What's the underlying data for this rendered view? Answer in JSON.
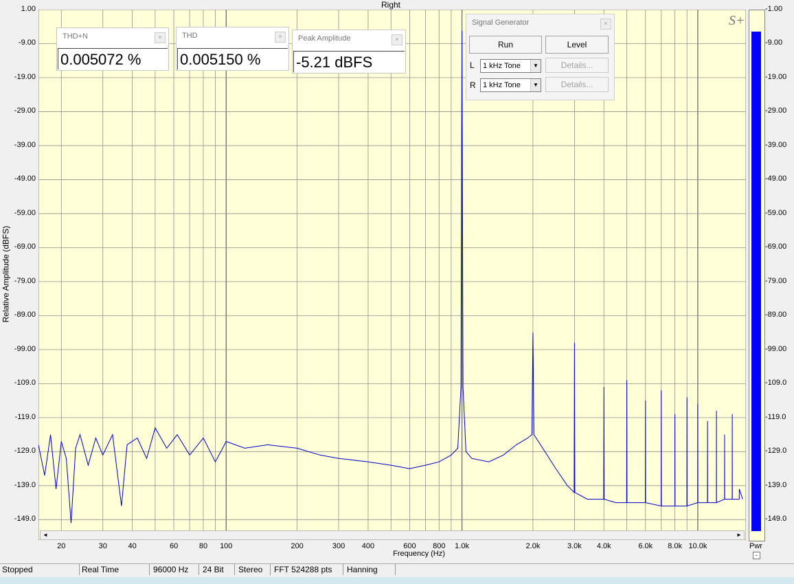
{
  "window": {
    "title": "Right",
    "brand": "S+"
  },
  "chart_data": {
    "type": "line",
    "xlabel": "Frequency (Hz)",
    "ylabel": "Relative Amplitude (dBFS)",
    "xscale": "log",
    "xlim": [
      16,
      16000
    ],
    "ylim": [
      -155,
      1
    ],
    "yticks": [
      "1.00",
      "-9.00",
      "-19.00",
      "-29.00",
      "-39.00",
      "-49.00",
      "-59.00",
      "-69.00",
      "-79.00",
      "-89.00",
      "-99.00",
      "-109.0",
      "-119.0",
      "-129.0",
      "-139.0",
      "-149.0"
    ],
    "ytick_values": [
      1,
      -9,
      -19,
      -29,
      -39,
      -49,
      -59,
      -69,
      -79,
      -89,
      -99,
      -109,
      -119,
      -129,
      -139,
      -149
    ],
    "xticks": [
      {
        "f": 20,
        "label": "20"
      },
      {
        "f": 30,
        "label": "30"
      },
      {
        "f": 40,
        "label": "40"
      },
      {
        "f": 60,
        "label": "60"
      },
      {
        "f": 80,
        "label": "80"
      },
      {
        "f": 100,
        "label": "100"
      },
      {
        "f": 200,
        "label": "200"
      },
      {
        "f": 300,
        "label": "300"
      },
      {
        "f": 400,
        "label": "400"
      },
      {
        "f": 600,
        "label": "600"
      },
      {
        "f": 800,
        "label": "800"
      },
      {
        "f": 1000,
        "label": "1.0k"
      },
      {
        "f": 2000,
        "label": "2.0k"
      },
      {
        "f": 3000,
        "label": "3.0k"
      },
      {
        "f": 4000,
        "label": "4.0k"
      },
      {
        "f": 6000,
        "label": "6.0k"
      },
      {
        "f": 8000,
        "label": "8.0k"
      },
      {
        "f": 10000,
        "label": "10.0k"
      }
    ],
    "grid": true,
    "series": [
      {
        "color": "#0000c8",
        "points": [
          [
            16,
            -127
          ],
          [
            17,
            -136
          ],
          [
            18,
            -124
          ],
          [
            19,
            -140
          ],
          [
            20,
            -126
          ],
          [
            21,
            -131
          ],
          [
            22,
            -150
          ],
          [
            23,
            -128
          ],
          [
            24,
            -124
          ],
          [
            26,
            -133
          ],
          [
            28,
            -125
          ],
          [
            30,
            -130
          ],
          [
            33,
            -124
          ],
          [
            36,
            -145
          ],
          [
            38,
            -127
          ],
          [
            42,
            -125
          ],
          [
            46,
            -131
          ],
          [
            50,
            -122
          ],
          [
            56,
            -128
          ],
          [
            62,
            -124
          ],
          [
            70,
            -130
          ],
          [
            80,
            -125
          ],
          [
            90,
            -132
          ],
          [
            100,
            -126
          ],
          [
            120,
            -128
          ],
          [
            150,
            -127
          ],
          [
            200,
            -128
          ],
          [
            250,
            -130
          ],
          [
            300,
            -131
          ],
          [
            400,
            -132
          ],
          [
            500,
            -133
          ],
          [
            600,
            -134
          ],
          [
            700,
            -133
          ],
          [
            800,
            -132
          ],
          [
            900,
            -130
          ],
          [
            960,
            -128
          ],
          [
            990,
            -110
          ],
          [
            1000,
            -5.2
          ],
          [
            1010,
            -110
          ],
          [
            1040,
            -129
          ],
          [
            1100,
            -131
          ],
          [
            1300,
            -132
          ],
          [
            1500,
            -130
          ],
          [
            1700,
            -127
          ],
          [
            1900,
            -125
          ],
          [
            1980,
            -124
          ],
          [
            2000,
            -94
          ],
          [
            2020,
            -124
          ],
          [
            2200,
            -128
          ],
          [
            2500,
            -134
          ],
          [
            2800,
            -139
          ],
          [
            2990,
            -141
          ],
          [
            3000,
            -97
          ],
          [
            3010,
            -141
          ],
          [
            3400,
            -143
          ],
          [
            3990,
            -143
          ],
          [
            4000,
            -110
          ],
          [
            4010,
            -143
          ],
          [
            4500,
            -144
          ],
          [
            4990,
            -144
          ],
          [
            5000,
            -108
          ],
          [
            5010,
            -144
          ],
          [
            5500,
            -144
          ],
          [
            5990,
            -144
          ],
          [
            6000,
            -114
          ],
          [
            6010,
            -144
          ],
          [
            6990,
            -145
          ],
          [
            7000,
            -111
          ],
          [
            7010,
            -145
          ],
          [
            7990,
            -145
          ],
          [
            8000,
            -118
          ],
          [
            8010,
            -145
          ],
          [
            8990,
            -145
          ],
          [
            9000,
            -113
          ],
          [
            9010,
            -145
          ],
          [
            9990,
            -144
          ],
          [
            10000,
            -115
          ],
          [
            10010,
            -144
          ],
          [
            10990,
            -144
          ],
          [
            11000,
            -120
          ],
          [
            11010,
            -144
          ],
          [
            11990,
            -144
          ],
          [
            12000,
            -117
          ],
          [
            12010,
            -144
          ],
          [
            12990,
            -143
          ],
          [
            13000,
            -124
          ],
          [
            13010,
            -143
          ],
          [
            13990,
            -143
          ],
          [
            14000,
            -118
          ],
          [
            14010,
            -143
          ],
          [
            14990,
            -143
          ],
          [
            15000,
            -140
          ],
          [
            15500,
            -143
          ]
        ]
      }
    ]
  },
  "panels": [
    {
      "title": "THD+N",
      "value": "0.005072 %"
    },
    {
      "title": "THD",
      "value": "0.005150 %"
    },
    {
      "title": "Peak Amplitude",
      "value": "-5.21 dBFS"
    }
  ],
  "close_glyph": "×",
  "generator": {
    "title": "Signal Generator",
    "run": "Run",
    "level": "Level",
    "l_label": "L",
    "r_label": "R",
    "l_tone": "1 kHz Tone",
    "r_tone": "1 kHz Tone",
    "details": "Details..."
  },
  "meter": {
    "label": "Pwr",
    "level_dbfs": -5.21
  },
  "status": [
    "Stopped",
    "Real Time",
    "96000 Hz",
    "24 Bit",
    "Stereo",
    "FFT 524288 pts",
    "Hanning"
  ]
}
